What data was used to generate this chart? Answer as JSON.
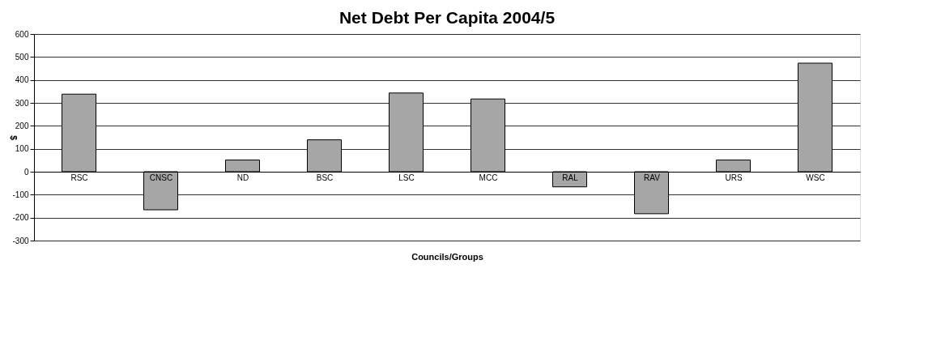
{
  "chart_data": {
    "type": "bar",
    "title": "Net Debt Per Capita 2004/5",
    "xlabel": "Councils/Groups",
    "ylabel": "$",
    "categories": [
      "RSC",
      "CNSC",
      "ND",
      "BSC",
      "LSC",
      "MCC",
      "RAL",
      "RAV",
      "URS",
      "WSC"
    ],
    "values": [
      338,
      -166,
      51,
      139,
      343,
      317,
      -66,
      -183,
      51,
      473
    ],
    "color": "#a6a6a6",
    "ylim": [
      -300,
      600
    ],
    "yticks": [
      {
        "value": -300,
        "label": "-300"
      },
      {
        "value": -200,
        "label": "-200"
      },
      {
        "value": -100,
        "label": "-100"
      },
      {
        "value": 0,
        "label": "0"
      },
      100,
      200,
      300,
      400,
      500,
      600
    ],
    "grid": "y"
  }
}
